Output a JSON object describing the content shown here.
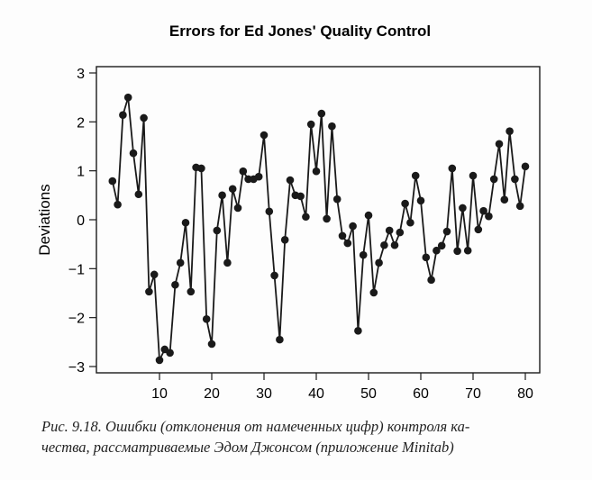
{
  "chart_data": {
    "type": "line",
    "title": "Errors for Ed Jones' Quality Control",
    "xlabel": "",
    "ylabel": "Deviations",
    "xlim": [
      0,
      81
    ],
    "ylim": [
      -3,
      3
    ],
    "xticks": [
      10,
      20,
      30,
      40,
      50,
      60,
      70,
      80
    ],
    "xtick_labels": [
      "10",
      "20",
      "30",
      "40",
      "50",
      "60",
      "70",
      "80"
    ],
    "yticks": [
      3,
      2,
      1,
      0,
      -1,
      -2,
      -3
    ],
    "ytick_labels": [
      "3",
      "2",
      "1",
      "0",
      "-1",
      "-2",
      "-3"
    ],
    "grid": false,
    "marker": "filled-circle",
    "series": [
      {
        "name": "Deviations",
        "x": [
          1,
          2,
          3,
          4,
          5,
          6,
          7,
          8,
          9,
          10,
          11,
          12,
          13,
          14,
          15,
          16,
          17,
          18,
          19,
          20,
          21,
          22,
          23,
          24,
          25,
          26,
          27,
          28,
          29,
          30,
          31,
          32,
          33,
          34,
          35,
          36,
          37,
          38,
          39,
          40,
          41,
          42,
          43,
          44,
          45,
          46,
          47,
          48,
          49,
          50,
          51,
          52,
          53,
          54,
          55,
          56,
          57,
          58,
          59,
          60,
          61,
          62,
          63,
          64,
          65,
          66,
          67,
          68,
          69,
          70,
          71,
          72,
          73,
          74,
          75,
          76,
          77,
          78,
          79,
          80
        ],
        "values": [
          0.79,
          0.31,
          2.14,
          2.5,
          1.36,
          0.52,
          2.08,
          -1.47,
          -1.12,
          -2.87,
          -2.65,
          -2.72,
          -1.33,
          -0.88,
          -0.06,
          -1.47,
          1.07,
          1.05,
          -2.03,
          -2.54,
          -0.22,
          0.5,
          -0.88,
          0.63,
          0.24,
          0.99,
          0.83,
          0.83,
          0.88,
          1.73,
          0.17,
          -1.14,
          -2.45,
          -0.41,
          0.81,
          0.5,
          0.48,
          0.06,
          1.95,
          0.99,
          2.17,
          0.02,
          1.91,
          0.42,
          -0.33,
          -0.48,
          -0.13,
          -2.27,
          -0.72,
          0.09,
          -1.49,
          -0.88,
          -0.52,
          -0.22,
          -0.52,
          -0.26,
          0.33,
          -0.06,
          0.9,
          0.39,
          -0.77,
          -1.23,
          -0.63,
          -0.53,
          -0.24,
          1.05,
          -0.64,
          0.24,
          -0.63,
          0.9,
          -0.2,
          0.18,
          0.07,
          0.83,
          1.55,
          0.41,
          1.81,
          0.83,
          0.28,
          1.09
        ]
      }
    ]
  },
  "caption": {
    "line1": "Рис. 9.18. Ошибки (отклонения от намеченных цифр) контроля ка-",
    "line2": "чества, рассматриваемые Эдом Джонсом (приложение Minitab)"
  },
  "colors": {
    "ink": "#1a1a1a",
    "background": "#fdfdfd"
  }
}
